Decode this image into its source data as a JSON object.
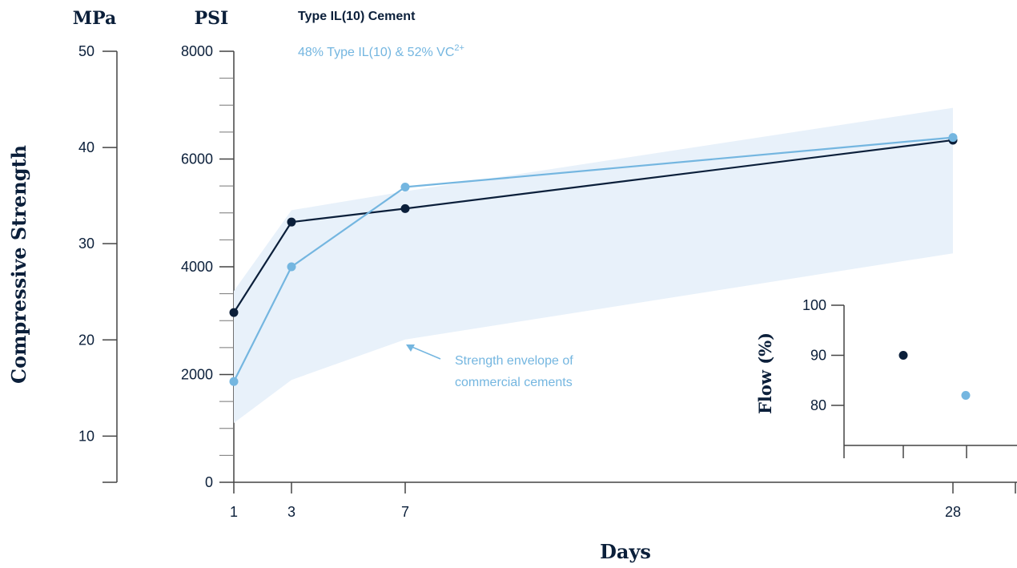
{
  "colors": {
    "dark": "#0b1f3a",
    "light": "#74b6e0",
    "envelope": "#e8f1fa",
    "axis": "#333333"
  },
  "chart_data": [
    {
      "type": "line",
      "ylabel": "Compressive Strength",
      "xlabel": "Days",
      "mpa_unit": "MPa",
      "psi_unit": "PSI",
      "x": [
        1,
        3,
        7,
        28
      ],
      "x_tick_labels": [
        "1",
        "3",
        "7",
        "28"
      ],
      "psi_ticks": [
        "0",
        "2000",
        "4000",
        "6000",
        "8000"
      ],
      "mpa_ticks": [
        "10",
        "20",
        "30",
        "40",
        "50"
      ],
      "ylim_psi": [
        0,
        8000
      ],
      "ylim_mpa": [
        5.2,
        50
      ],
      "series": [
        {
          "name": "Type IL(10) Cement",
          "color": "#0b1f3a",
          "values": [
            3150,
            4830,
            5080,
            6350
          ]
        },
        {
          "name": "48% Type IL(10) & 52% VC",
          "name_sup": "2+",
          "color": "#74b6e0",
          "values": [
            1870,
            4000,
            5480,
            6400
          ]
        }
      ],
      "envelope": {
        "label_line1": "Strength envelope of",
        "label_line2": "commercial cements",
        "x": [
          1,
          3,
          7,
          28
        ],
        "upper": [
          3550,
          5050,
          5400,
          6950
        ],
        "lower": [
          1100,
          1900,
          2650,
          4250
        ]
      }
    },
    {
      "type": "scatter",
      "ylabel": "Flow (%)",
      "yticks": [
        "80",
        "90",
        "100"
      ],
      "ylim": [
        72,
        100
      ],
      "points": [
        {
          "series": "Type IL(10) Cement",
          "x": 1,
          "y": 90,
          "color": "#0b1f3a"
        },
        {
          "series": "48% Type IL(10) & 52% VC2+",
          "x": 2,
          "y": 82,
          "color": "#74b6e0"
        }
      ]
    }
  ]
}
